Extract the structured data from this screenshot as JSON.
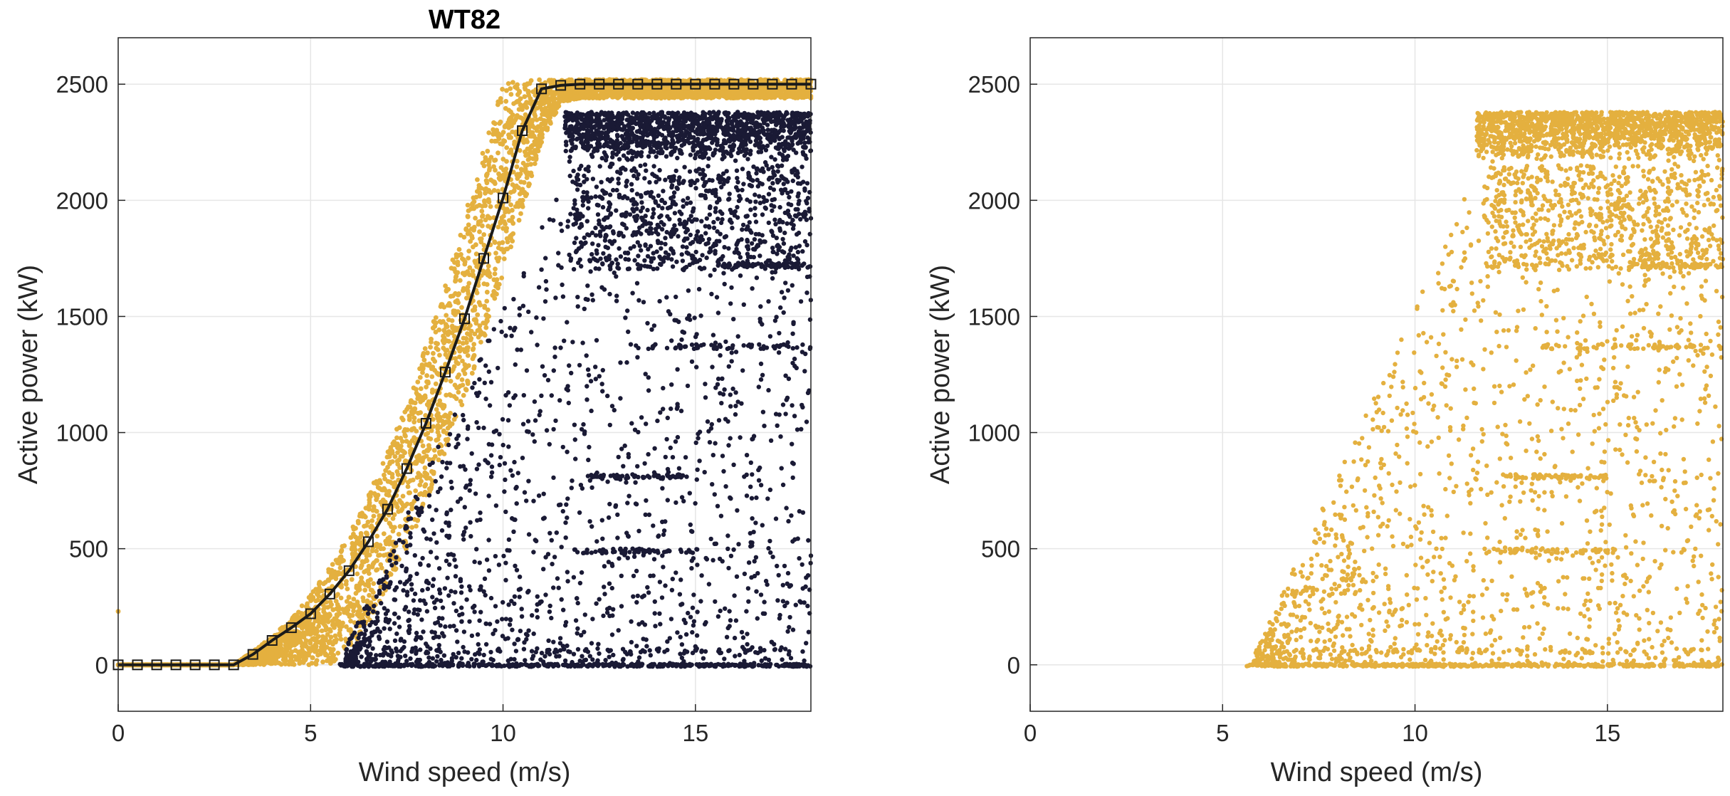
{
  "colors": {
    "normal": "#e4b03f",
    "abnormal": "#1a1a35",
    "curve": "#1a1a1a",
    "grid": "#e6e6e6",
    "axis": "#262626"
  },
  "chart_data": [
    {
      "type": "scatter",
      "title": "WT82",
      "xlabel": "Wind speed (m/s)",
      "ylabel": "Active power (kW)",
      "xlim": [
        0,
        18
      ],
      "ylim": [
        -200,
        2700
      ],
      "xticks": [
        "0",
        "5",
        "10",
        "15"
      ],
      "yticks": [
        "0",
        "500",
        "1000",
        "1500",
        "2000",
        "2500"
      ],
      "grid": true,
      "series": [
        {
          "role": "normal-band",
          "color": "#e4b03f",
          "x": [
            0.0,
            3.0,
            3.5,
            4.0,
            4.5,
            5.0,
            5.5,
            6.0,
            6.5,
            7.0,
            7.5,
            8.0,
            8.5,
            9.0,
            9.5,
            10.0,
            10.5,
            11.0,
            11.5,
            12.0,
            18.0
          ],
          "y_low": [
            0,
            0,
            0,
            0,
            0,
            0,
            0,
            60,
            180,
            330,
            500,
            700,
            920,
            1150,
            1400,
            1680,
            1960,
            2250,
            2420,
            2440,
            2440
          ],
          "y_high": [
            0,
            0,
            60,
            120,
            200,
            300,
            420,
            560,
            730,
            920,
            1130,
            1380,
            1640,
            1930,
            2230,
            2500,
            2520,
            2520,
            2520,
            2520,
            2520
          ]
        },
        {
          "role": "abnormal-points",
          "color": "#1a1a35",
          "x_range": [
            5.7,
            18.0
          ],
          "y_range": [
            0,
            2390
          ]
        }
      ],
      "power_curve": {
        "marker": "square",
        "x": [
          0.0,
          0.5,
          1.0,
          1.5,
          2.0,
          2.5,
          3.0,
          3.5,
          4.0,
          4.5,
          5.0,
          5.5,
          6.0,
          6.5,
          7.0,
          7.5,
          8.0,
          8.5,
          9.0,
          9.5,
          10.0,
          10.5,
          11.0,
          11.5,
          12.0,
          12.5,
          13.0,
          13.5,
          14.0,
          14.5,
          15.0,
          15.5,
          16.0,
          16.5,
          17.0,
          17.5,
          18.0
        ],
        "y": [
          0,
          0,
          0,
          0,
          0,
          0,
          0,
          45,
          105,
          160,
          220,
          305,
          405,
          530,
          670,
          845,
          1040,
          1260,
          1490,
          1750,
          2010,
          2300,
          2480,
          2495,
          2500,
          2500,
          2500,
          2500,
          2500,
          2500,
          2500,
          2500,
          2500,
          2500,
          2500,
          2500,
          2500
        ]
      }
    },
    {
      "type": "scatter",
      "title": "",
      "xlabel": "Wind speed (m/s)",
      "ylabel": "Active power (kW)",
      "xlim": [
        0,
        18
      ],
      "ylim": [
        -200,
        2700
      ],
      "xticks": [
        "0",
        "5",
        "10",
        "15"
      ],
      "yticks": [
        "0",
        "500",
        "1000",
        "1500",
        "2000",
        "2500"
      ],
      "grid": true,
      "series": [
        {
          "role": "abnormal-points",
          "color": "#e4b03f",
          "x_range": [
            5.6,
            18.0
          ],
          "y_range": [
            0,
            2390
          ]
        }
      ]
    }
  ]
}
